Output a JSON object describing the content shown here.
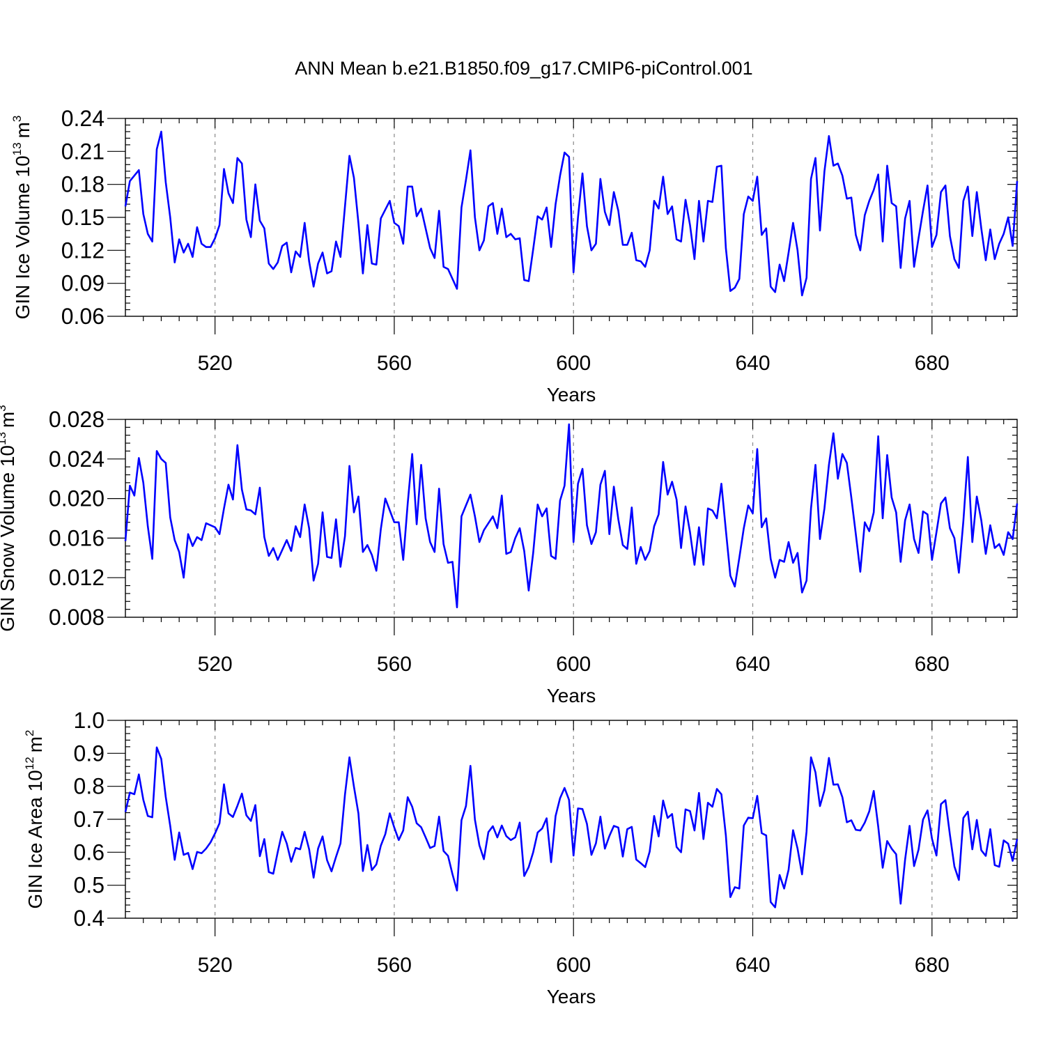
{
  "title": "ANN Mean b.e21.B1850.f09_g17.CMIP6-piControl.001",
  "colors": {
    "line": "#0000ff",
    "axis": "#000000",
    "grid": "#888888"
  },
  "chart_data": [
    {
      "type": "line",
      "id": "ice-volume",
      "ylabel": "GIN Ice Volume 10",
      "ylabel_exp": "13",
      "ylabel_unit": "m",
      "ylabel_unit_exp": "3",
      "xlabel": "Years",
      "xlim": [
        500,
        699
      ],
      "ylim": [
        0.06,
        0.24
      ],
      "yticks": [
        0.06,
        0.09,
        0.12,
        0.15,
        0.18,
        0.21,
        0.24
      ],
      "ytick_labels": [
        "0.06",
        "0.09",
        "0.12",
        "0.15",
        "0.18",
        "0.21",
        "0.24"
      ],
      "xticks": [
        520,
        560,
        600,
        640,
        680
      ],
      "xtick_labels": [
        "520",
        "560",
        "600",
        "640",
        "680"
      ],
      "grid": "x dashed",
      "x_start": 500,
      "values": [
        0.16,
        0.183,
        0.188,
        0.193,
        0.153,
        0.135,
        0.128,
        0.212,
        0.228,
        0.182,
        0.15,
        0.109,
        0.13,
        0.118,
        0.126,
        0.114,
        0.141,
        0.126,
        0.123,
        0.123,
        0.131,
        0.143,
        0.194,
        0.172,
        0.163,
        0.204,
        0.199,
        0.148,
        0.132,
        0.18,
        0.147,
        0.14,
        0.108,
        0.103,
        0.109,
        0.124,
        0.127,
        0.1,
        0.119,
        0.114,
        0.145,
        0.11,
        0.087,
        0.108,
        0.118,
        0.099,
        0.101,
        0.128,
        0.114,
        0.16,
        0.206,
        0.186,
        0.145,
        0.099,
        0.143,
        0.108,
        0.107,
        0.149,
        0.157,
        0.165,
        0.145,
        0.142,
        0.126,
        0.178,
        0.178,
        0.151,
        0.158,
        0.14,
        0.122,
        0.113,
        0.156,
        0.105,
        0.103,
        0.094,
        0.085,
        0.159,
        0.184,
        0.211,
        0.15,
        0.12,
        0.129,
        0.16,
        0.163,
        0.135,
        0.158,
        0.132,
        0.135,
        0.13,
        0.131,
        0.093,
        0.092,
        0.121,
        0.151,
        0.148,
        0.159,
        0.123,
        0.162,
        0.188,
        0.209,
        0.205,
        0.1,
        0.15,
        0.19,
        0.142,
        0.12,
        0.126,
        0.185,
        0.155,
        0.143,
        0.173,
        0.156,
        0.125,
        0.125,
        0.136,
        0.111,
        0.11,
        0.105,
        0.12,
        0.165,
        0.158,
        0.187,
        0.153,
        0.16,
        0.13,
        0.128,
        0.166,
        0.143,
        0.112,
        0.165,
        0.128,
        0.165,
        0.164,
        0.196,
        0.197,
        0.122,
        0.083,
        0.086,
        0.094,
        0.153,
        0.169,
        0.165,
        0.187,
        0.134,
        0.14,
        0.087,
        0.082,
        0.107,
        0.092,
        0.118,
        0.145,
        0.12,
        0.079,
        0.095,
        0.185,
        0.204,
        0.138,
        0.192,
        0.224,
        0.197,
        0.199,
        0.188,
        0.167,
        0.168,
        0.134,
        0.12,
        0.152,
        0.165,
        0.175,
        0.189,
        0.128,
        0.197,
        0.163,
        0.16,
        0.104,
        0.149,
        0.165,
        0.105,
        0.131,
        0.156,
        0.179,
        0.123,
        0.134,
        0.173,
        0.179,
        0.133,
        0.112,
        0.104,
        0.165,
        0.178,
        0.133,
        0.173,
        0.14,
        0.111,
        0.139,
        0.112,
        0.126,
        0.135,
        0.15,
        0.124,
        0.183
      ]
    },
    {
      "type": "line",
      "id": "snow-volume",
      "ylabel": "GIN Snow Volume 10",
      "ylabel_exp": "13",
      "ylabel_unit": "m",
      "ylabel_unit_exp": "3",
      "xlabel": "Years",
      "xlim": [
        500,
        699
      ],
      "ylim": [
        0.008,
        0.028
      ],
      "yticks": [
        0.008,
        0.012,
        0.016,
        0.02,
        0.024,
        0.028
      ],
      "ytick_labels": [
        "0.008",
        "0.012",
        "0.016",
        "0.020",
        "0.024",
        "0.028"
      ],
      "xticks": [
        520,
        560,
        600,
        640,
        680
      ],
      "xtick_labels": [
        "520",
        "560",
        "600",
        "640",
        "680"
      ],
      "grid": "x dashed",
      "x_start": 500,
      "values": [
        0.0157,
        0.0213,
        0.0203,
        0.0241,
        0.0216,
        0.0172,
        0.0139,
        0.0248,
        0.024,
        0.0236,
        0.0181,
        0.0158,
        0.0146,
        0.012,
        0.0164,
        0.0152,
        0.0161,
        0.0158,
        0.0175,
        0.0173,
        0.0171,
        0.0164,
        0.019,
        0.0214,
        0.0199,
        0.0254,
        0.0209,
        0.0189,
        0.0188,
        0.0184,
        0.0211,
        0.0161,
        0.0142,
        0.015,
        0.0138,
        0.0148,
        0.0158,
        0.0147,
        0.0172,
        0.0161,
        0.0194,
        0.017,
        0.0117,
        0.0134,
        0.0186,
        0.0141,
        0.014,
        0.0179,
        0.0131,
        0.0162,
        0.0233,
        0.0186,
        0.0202,
        0.0146,
        0.0153,
        0.0143,
        0.0127,
        0.0169,
        0.02,
        0.0188,
        0.0176,
        0.0176,
        0.0138,
        0.0195,
        0.0245,
        0.0174,
        0.0234,
        0.018,
        0.0156,
        0.0146,
        0.021,
        0.0154,
        0.0135,
        0.0136,
        0.009,
        0.0182,
        0.0193,
        0.0204,
        0.0182,
        0.0156,
        0.0168,
        0.0175,
        0.0182,
        0.017,
        0.0203,
        0.0144,
        0.0146,
        0.016,
        0.017,
        0.0147,
        0.0107,
        0.0145,
        0.0194,
        0.0182,
        0.019,
        0.0142,
        0.0139,
        0.0198,
        0.0213,
        0.0275,
        0.0156,
        0.0215,
        0.023,
        0.0173,
        0.0154,
        0.0166,
        0.0214,
        0.0228,
        0.0164,
        0.0212,
        0.0179,
        0.0153,
        0.0149,
        0.0191,
        0.0134,
        0.0151,
        0.0138,
        0.0147,
        0.0172,
        0.0184,
        0.0237,
        0.0204,
        0.0217,
        0.0199,
        0.015,
        0.0192,
        0.0166,
        0.0133,
        0.0171,
        0.0133,
        0.019,
        0.0188,
        0.018,
        0.0215,
        0.0168,
        0.0122,
        0.0111,
        0.014,
        0.017,
        0.0193,
        0.0185,
        0.025,
        0.0171,
        0.018,
        0.0139,
        0.012,
        0.0138,
        0.0136,
        0.0156,
        0.0135,
        0.0145,
        0.0105,
        0.0117,
        0.019,
        0.0234,
        0.0159,
        0.019,
        0.0234,
        0.0266,
        0.022,
        0.0245,
        0.0236,
        0.0201,
        0.0164,
        0.0126,
        0.0176,
        0.0167,
        0.0186,
        0.0263,
        0.018,
        0.0244,
        0.0201,
        0.0186,
        0.0136,
        0.0178,
        0.0194,
        0.0159,
        0.0145,
        0.0187,
        0.0184,
        0.0138,
        0.0166,
        0.0195,
        0.0201,
        0.017,
        0.016,
        0.0125,
        0.0177,
        0.0242,
        0.0156,
        0.0202,
        0.0178,
        0.0144,
        0.0173,
        0.015,
        0.0154,
        0.0143,
        0.0166,
        0.0159,
        0.0195
      ]
    },
    {
      "type": "line",
      "id": "ice-area",
      "ylabel": "GIN Ice Area 10",
      "ylabel_exp": "12",
      "ylabel_unit": "m",
      "ylabel_unit_exp": "2",
      "xlabel": "Years",
      "xlim": [
        500,
        699
      ],
      "ylim": [
        0.4,
        1.0
      ],
      "yticks": [
        0.4,
        0.5,
        0.6,
        0.7,
        0.8,
        0.9,
        1.0
      ],
      "ytick_labels": [
        "0.4",
        "0.5",
        "0.6",
        "0.7",
        "0.8",
        "0.9",
        "1.0"
      ],
      "xticks": [
        520,
        560,
        600,
        640,
        680
      ],
      "xtick_labels": [
        "520",
        "560",
        "600",
        "640",
        "680"
      ],
      "grid": "x dashed",
      "x_start": 500,
      "values": [
        0.722,
        0.781,
        0.776,
        0.836,
        0.759,
        0.71,
        0.706,
        0.918,
        0.883,
        0.768,
        0.68,
        0.577,
        0.66,
        0.592,
        0.598,
        0.549,
        0.601,
        0.597,
        0.611,
        0.63,
        0.657,
        0.688,
        0.806,
        0.718,
        0.707,
        0.741,
        0.778,
        0.712,
        0.695,
        0.743,
        0.588,
        0.64,
        0.54,
        0.535,
        0.601,
        0.662,
        0.627,
        0.571,
        0.613,
        0.609,
        0.662,
        0.609,
        0.523,
        0.611,
        0.648,
        0.576,
        0.542,
        0.586,
        0.627,
        0.775,
        0.888,
        0.799,
        0.718,
        0.543,
        0.622,
        0.546,
        0.563,
        0.62,
        0.655,
        0.718,
        0.675,
        0.637,
        0.666,
        0.767,
        0.738,
        0.688,
        0.676,
        0.645,
        0.613,
        0.619,
        0.708,
        0.604,
        0.589,
        0.533,
        0.484,
        0.697,
        0.74,
        0.862,
        0.699,
        0.621,
        0.579,
        0.661,
        0.679,
        0.645,
        0.681,
        0.649,
        0.637,
        0.645,
        0.69,
        0.528,
        0.555,
        0.6,
        0.66,
        0.672,
        0.703,
        0.57,
        0.71,
        0.764,
        0.795,
        0.759,
        0.59,
        0.733,
        0.731,
        0.686,
        0.592,
        0.627,
        0.708,
        0.611,
        0.649,
        0.68,
        0.675,
        0.587,
        0.67,
        0.677,
        0.578,
        0.567,
        0.555,
        0.602,
        0.71,
        0.648,
        0.757,
        0.704,
        0.716,
        0.616,
        0.6,
        0.73,
        0.725,
        0.666,
        0.78,
        0.64,
        0.75,
        0.738,
        0.792,
        0.776,
        0.651,
        0.464,
        0.494,
        0.49,
        0.681,
        0.705,
        0.703,
        0.771,
        0.658,
        0.651,
        0.449,
        0.433,
        0.531,
        0.49,
        0.547,
        0.667,
        0.611,
        0.533,
        0.662,
        0.888,
        0.842,
        0.74,
        0.788,
        0.886,
        0.805,
        0.806,
        0.767,
        0.691,
        0.697,
        0.668,
        0.666,
        0.69,
        0.724,
        0.786,
        0.678,
        0.553,
        0.634,
        0.611,
        0.594,
        0.444,
        0.578,
        0.68,
        0.558,
        0.608,
        0.699,
        0.727,
        0.641,
        0.59,
        0.746,
        0.758,
        0.653,
        0.557,
        0.516,
        0.704,
        0.723,
        0.609,
        0.698,
        0.606,
        0.589,
        0.67,
        0.561,
        0.556,
        0.636,
        0.626,
        0.574,
        0.64
      ]
    }
  ]
}
